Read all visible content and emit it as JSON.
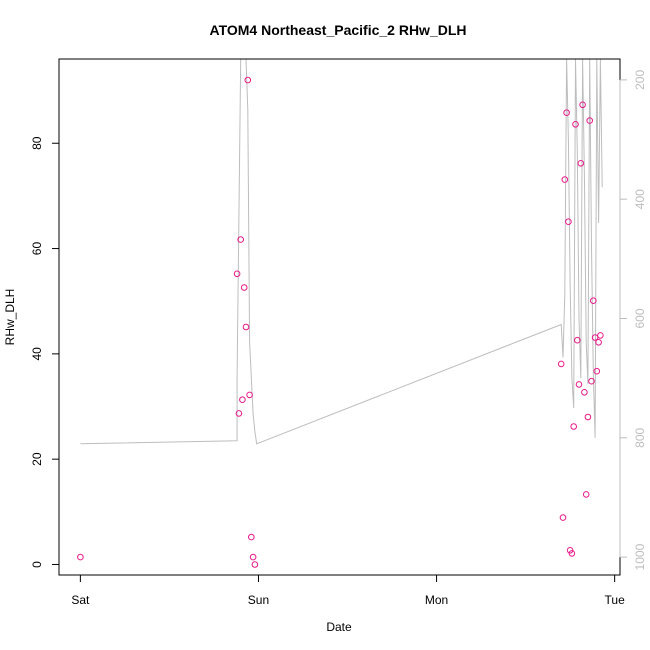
{
  "chart_data": {
    "type": "scatter",
    "title": "ATOM4 Northeast_Pacific_2 RHw_DLH",
    "xlabel": "Date",
    "ylabel": "RHw_DLH",
    "x_ticks": [
      "Sat",
      "Sun",
      "Mon",
      "Tue"
    ],
    "x_range_days": [
      -0.12,
      3.03
    ],
    "y_ticks": [
      0,
      20,
      40,
      60,
      80
    ],
    "ylim": [
      -2,
      96
    ],
    "secondary_axis": {
      "label": "",
      "ticks": [
        200,
        400,
        600,
        800,
        1000
      ],
      "range": [
        1030,
        165
      ],
      "reversed": true,
      "color": "#bdbdbd"
    },
    "grid": false,
    "colors": {
      "points": "#e8198b",
      "line": "#bdbdbd",
      "frame": "#000000"
    },
    "series": [
      {
        "kind": "points",
        "x": [
          0.0,
          0.88,
          0.89,
          0.9,
          0.91,
          0.92,
          0.93,
          0.94,
          0.95,
          0.96,
          0.97,
          0.98,
          2.7,
          2.71,
          2.72,
          2.73,
          2.74,
          2.75,
          2.76,
          2.77,
          2.78,
          2.79,
          2.8,
          2.81,
          2.82,
          2.83,
          2.84,
          2.85,
          2.86,
          2.87,
          2.88,
          2.89,
          2.9,
          2.91,
          2.92
        ],
        "y": [
          1.4,
          55.2,
          28.7,
          61.7,
          31.3,
          52.6,
          45.1,
          92.0,
          32.2,
          5.2,
          1.4,
          0.0,
          38.1,
          8.9,
          73.1,
          85.8,
          65.1,
          2.7,
          2.1,
          26.2,
          83.6,
          42.6,
          34.2,
          76.2,
          87.3,
          32.7,
          13.3,
          28.0,
          84.3,
          34.8,
          50.1,
          43.1,
          36.7,
          42.2,
          43.5
        ]
      },
      {
        "kind": "line",
        "x": [
          0.0,
          0.88,
          0.88,
          0.9,
          0.92,
          0.93,
          0.94,
          0.95,
          0.97,
          0.98,
          0.99,
          2.7,
          2.71,
          2.72,
          2.73,
          2.74,
          2.75,
          2.76,
          2.77,
          2.78,
          2.79,
          2.8,
          2.81,
          2.82,
          2.83,
          2.84,
          2.85,
          2.86,
          2.87,
          2.88,
          2.89,
          2.9,
          2.91,
          2.92,
          2.93
        ],
        "y": [
          810,
          805,
          695,
          165,
          165,
          165,
          250,
          640,
          760,
          790,
          810,
          610,
          665,
          560,
          165,
          300,
          540,
          700,
          750,
          165,
          320,
          600,
          700,
          165,
          360,
          640,
          710,
          165,
          480,
          690,
          800,
          165,
          440,
          165,
          380
        ]
      }
    ]
  }
}
